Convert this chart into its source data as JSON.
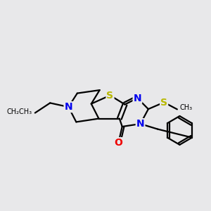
{
  "background_color": "#e8e8ea",
  "atom_colors": {
    "S": "#b8b800",
    "N": "#0000ee",
    "O": "#ee0000",
    "C": "#000000"
  },
  "bond_color": "#000000",
  "bond_width": 1.6,
  "font_size_atom": 10
}
